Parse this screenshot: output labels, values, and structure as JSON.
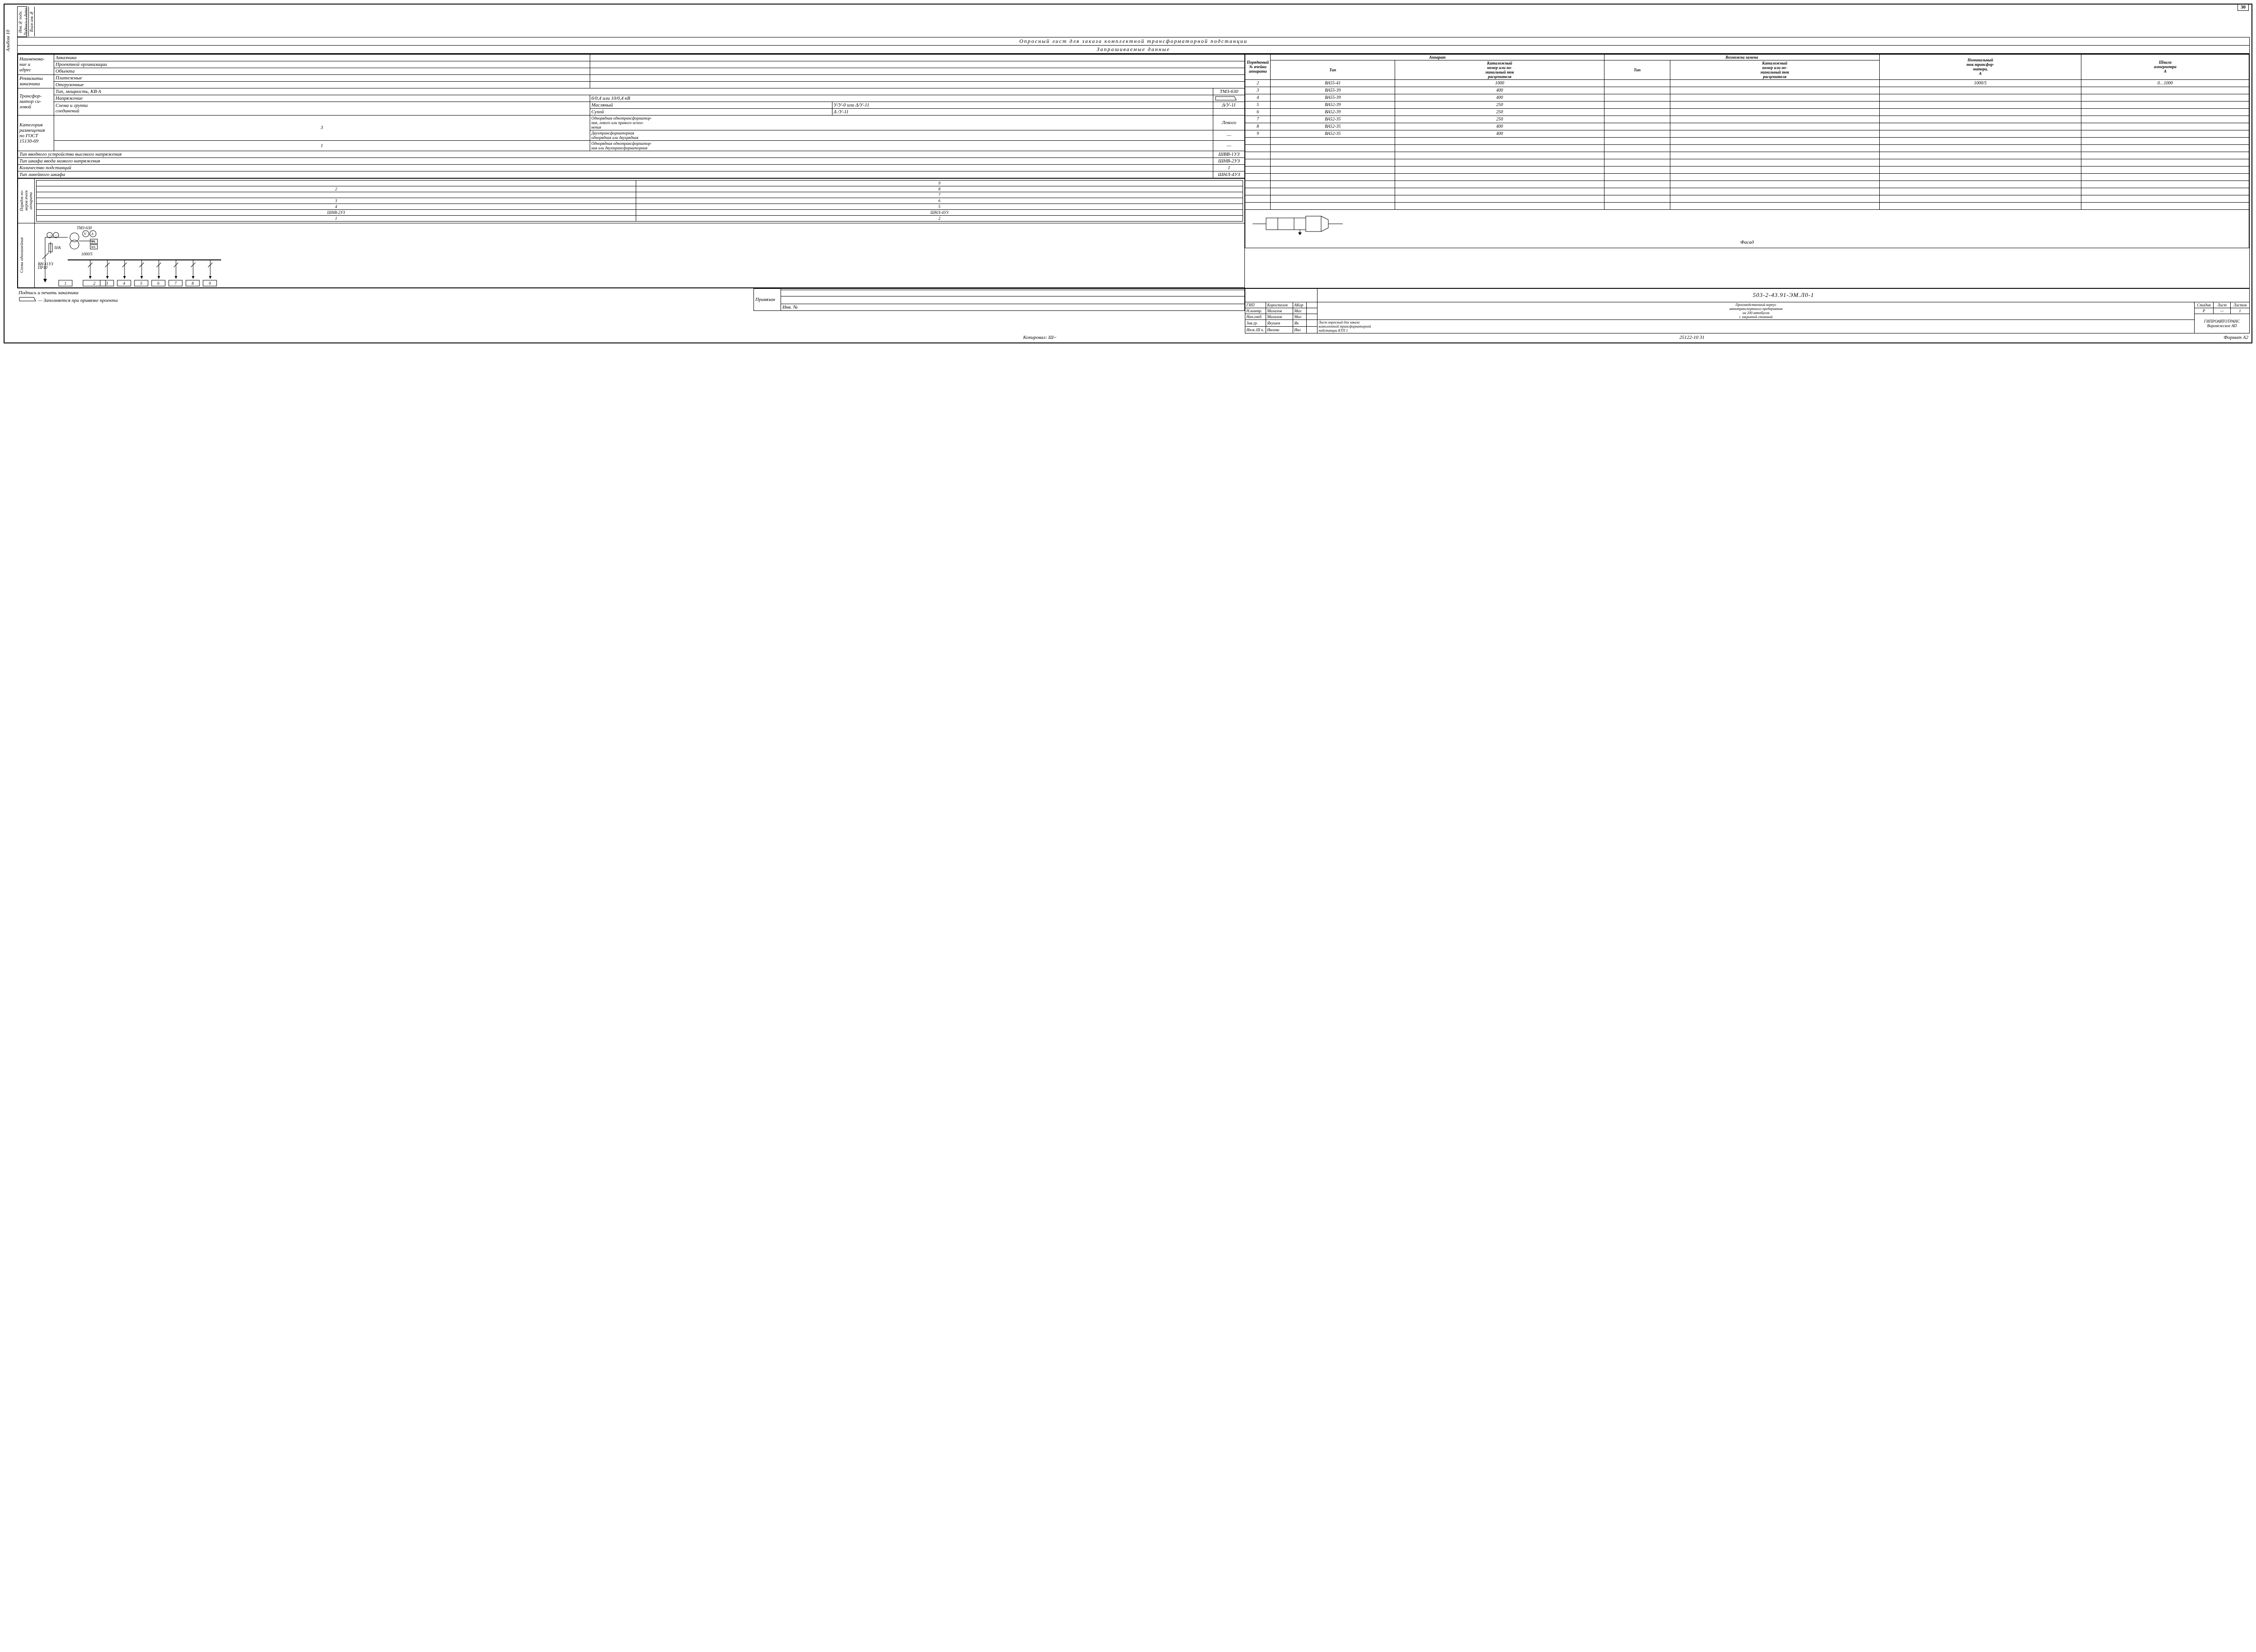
{
  "page_number": "30",
  "side_label": "Альбом 10",
  "side_segments": [
    "Инв.№ подл.",
    "Подпись и дата",
    "Взам инв.№"
  ],
  "title": "Опросный лист  для заказа  комплектной трансформаторной подстанции",
  "subtitle": "Запрашиваемые   данные",
  "left": {
    "name_addr_label": "Наименова-\nние и\nадрес",
    "name_addr_rows": [
      "Заказчика",
      "Проектной организации",
      "Объекта"
    ],
    "rekv_label": "Реквизиты\nзаказчика",
    "rekv_rows": [
      "Платежные",
      "Отгрузочные"
    ],
    "trans_label": "Трансфор-\nматор си-\nловой",
    "trans_type_label": "Тип, мощность,  КВ·А",
    "trans_type_val": "ТМЗ-630",
    "trans_volt_label": "Напряжение",
    "trans_volt_opts": "6/0,4   или   10/0,4 кВ",
    "trans_scheme_label": "Схема и группа\nсоединений",
    "trans_oil": "Масляный",
    "trans_oil_opt": "У/У-0 или Δ/У-11",
    "trans_oil_val": "Δ/У-11",
    "trans_dry": "Сухой",
    "trans_dry_opt": "Δ /У-11",
    "kat_label": "Категория\nразмещения\nпо ГОСТ\n15130-69",
    "kat_3": "3",
    "kat_3_text1": "Однорядная однотрансформатор-\nная, левого или правого испол-\nнения",
    "kat_3_val1": "Левого",
    "kat_3_text2": "Двухтрансформаторная\nоднорядная или двухрядная",
    "kat_3_val2": "—",
    "kat_1": "1",
    "kat_1_text": "Однорядная однотрансформатор-\nная или двухтрансформаторная",
    "kat_1_val": "—",
    "row_hv": "Тип вводного  устройства  высокого напряжения",
    "row_hv_val": "ШВВ-1УЗ",
    "row_lv": "Тип шкафа   ввода   низкого  напряжения",
    "row_lv_val": "ШНВ-2УЗ",
    "row_qty": "Количество  подстанций",
    "row_qty_val": "1",
    "row_line": "Тип  линейного   шкафа",
    "row_line_val": "ШНЛ-4УЗ"
  },
  "cell_order": {
    "vlabel": "Порядок но-\nмеров ячеек\nаппарата",
    "rows": [
      [
        "",
        "9"
      ],
      [
        "2",
        "8"
      ],
      [
        "",
        "7"
      ],
      [
        "3",
        "6"
      ],
      [
        "4",
        "5"
      ],
      [
        "ШНВ-2УЗ",
        "ШНЛ-4УЗ"
      ],
      [
        "1",
        "2"
      ]
    ]
  },
  "scheme": {
    "vlabel": "Схема однолинейная",
    "tmz": "ТМЗ-630",
    "fuse": "50А",
    "vnp": "ВН-11УЗ\nПР10",
    "ratio": "1000/5",
    "cells": [
      "1",
      "2",
      "3",
      "4",
      "5",
      "6",
      "7",
      "8",
      "9"
    ]
  },
  "apparatus": {
    "col_order": "Порядковый\n№ ячейки\nаппарата",
    "group1": "Аппарат",
    "group2": "Возможна замена",
    "col_type": "Тип",
    "col_cat": "Каталожный\nномер или но-\nминальный ток\nрасцепителя",
    "col_nom": "Номинальный\nток трансфор-\nматора,\nА",
    "col_scale": "Шкала\nамперметра\nА",
    "rows": [
      {
        "n": "2",
        "type": "ВА55-41",
        "cat": "1000",
        "t2": "",
        "c2": "",
        "nom": "1000/5",
        "scale": "0…1000"
      },
      {
        "n": "3",
        "type": "ВА55-39",
        "cat": "400",
        "t2": "",
        "c2": "",
        "nom": "",
        "scale": ""
      },
      {
        "n": "4",
        "type": "ВА55-39",
        "cat": "400",
        "t2": "",
        "c2": "",
        "nom": "",
        "scale": ""
      },
      {
        "n": "5",
        "type": "ВА52-39",
        "cat": "250",
        "t2": "",
        "c2": "",
        "nom": "",
        "scale": ""
      },
      {
        "n": "6",
        "type": "ВА52-39",
        "cat": "250",
        "t2": "",
        "c2": "",
        "nom": "",
        "scale": ""
      },
      {
        "n": "7",
        "type": "ВА52-35",
        "cat": "250",
        "t2": "",
        "c2": "",
        "nom": "",
        "scale": ""
      },
      {
        "n": "8",
        "type": "ВА52-35",
        "cat": "400",
        "t2": "",
        "c2": "",
        "nom": "",
        "scale": ""
      },
      {
        "n": "9",
        "type": "ВА52-35",
        "cat": "400",
        "t2": "",
        "c2": "",
        "nom": "",
        "scale": ""
      }
    ],
    "blank_rows": 10
  },
  "facade_label": "Фасад",
  "bind_table": {
    "label": "Привязан",
    "inv": "Инв. №"
  },
  "stamp": {
    "code": "503-2-43.91-ЭМ.Л0-1",
    "roles": [
      {
        "r": "ГИП",
        "n": "Коростелев"
      },
      {
        "r": "Н.контр.",
        "n": "Малахов"
      },
      {
        "r": "Нач.отд.",
        "n": "Малахов"
      },
      {
        "r": "Зав.гр.",
        "n": "Якушев"
      },
      {
        "r": "Инж.III к.",
        "n": "Ивлева"
      }
    ],
    "proj1": "Производственный корпус\nавтотранспортного предприятия\nна 200 автобусов\nс закрытой стоянкой",
    "proj2": "Лист опросный для заказа\nкомплектной трансформаторной\nподстанции КТП 1",
    "stage_h": "Стадия",
    "sheet_h": "Лист",
    "sheets_h": "Листов",
    "stage": "Р",
    "sheet": "—",
    "sheets": "1",
    "org": "ГИПРОАВТОТРАНС\nВоронежское АП"
  },
  "footer": {
    "sign_label": "Подпись и  печать  заказчика",
    "fill_note": "— Заполняется при привязке проекта",
    "kopir": "Копировал:",
    "num": "25122-10    31",
    "format": "Формат А2"
  },
  "colors": {
    "line": "#000000",
    "bg": "#ffffff"
  }
}
